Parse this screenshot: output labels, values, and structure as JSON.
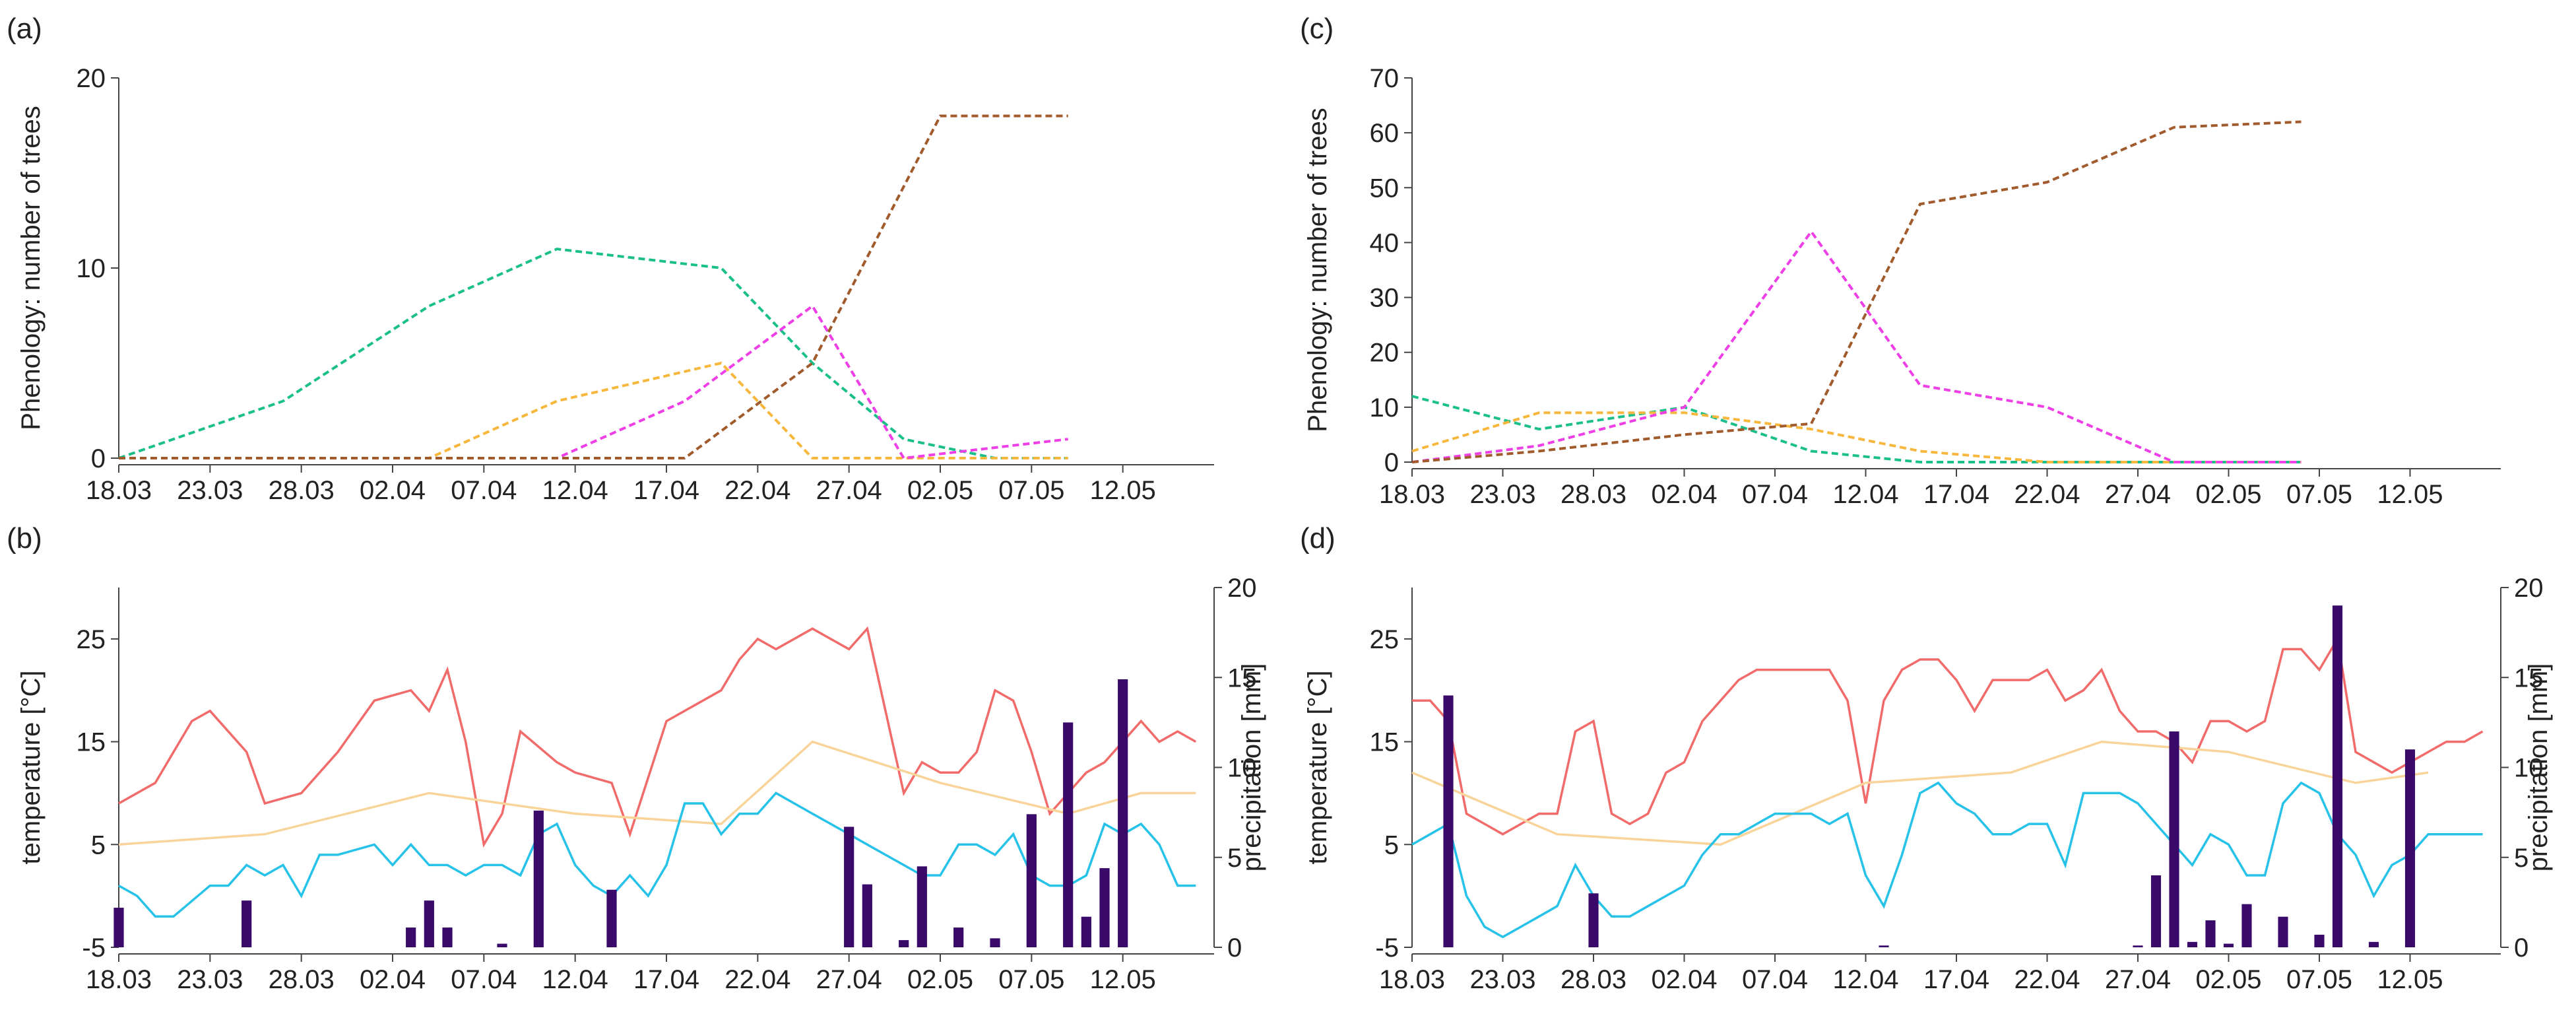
{
  "chart_data": [
    {
      "panel": "(a)",
      "type": "line",
      "ylabel": "Phenology: number of trees",
      "xlabel": "",
      "ylim": [
        0,
        20
      ],
      "yticks": [
        "0",
        "10",
        "20"
      ],
      "xticks": [
        "18.03",
        "23.03",
        "28.03",
        "02.04",
        "07.04",
        "12.04",
        "17.04",
        "22.04",
        "27.04",
        "02.05",
        "07.05",
        "12.05"
      ],
      "xlim": [
        0,
        60
      ],
      "series": [
        {
          "color": "#1bbf8a",
          "x": [
            0,
            9,
            17,
            24,
            33,
            38,
            43,
            48,
            52
          ],
          "y": [
            0,
            3,
            8,
            11,
            10,
            5,
            1,
            0,
            0
          ]
        },
        {
          "color": "#f6b73c",
          "x": [
            0,
            17,
            24,
            33,
            38,
            43,
            52
          ],
          "y": [
            0,
            0,
            3,
            5,
            0,
            0,
            0
          ]
        },
        {
          "color": "#ee3ee6",
          "x": [
            0,
            24,
            31,
            38,
            43,
            52
          ],
          "y": [
            0,
            0,
            3,
            8,
            0,
            1
          ]
        },
        {
          "color": "#a05a2c",
          "x": [
            0,
            31,
            38,
            45,
            52
          ],
          "y": [
            0,
            0,
            5,
            18,
            18
          ]
        }
      ]
    },
    {
      "panel": "(b)",
      "type": "line",
      "ylabel": "temperature [°C]",
      "y2label": "precipitation [mm]",
      "ylim": [
        -5,
        30
      ],
      "yticks": [
        "-5",
        "5",
        "15",
        "25"
      ],
      "y2lim": [
        0,
        20
      ],
      "y2ticks": [
        "0",
        "5",
        "10",
        "15",
        "20"
      ],
      "xticks": [
        "18.03",
        "23.03",
        "28.03",
        "02.04",
        "07.04",
        "12.04",
        "17.04",
        "22.04",
        "27.04",
        "02.05",
        "07.05",
        "12.05"
      ],
      "xlim": [
        0,
        60
      ],
      "series": [
        {
          "color": "#f26b6b",
          "x": [
            0,
            2,
            4,
            5,
            7,
            8,
            10,
            12,
            14,
            16,
            17,
            18,
            19,
            20,
            21,
            22,
            24,
            25,
            27,
            28,
            30,
            33,
            34,
            35,
            36,
            38,
            40,
            41,
            43,
            44,
            45,
            46,
            47,
            48,
            49,
            50,
            51,
            52,
            53,
            54,
            56,
            57,
            58,
            59
          ],
          "y": [
            9,
            11,
            17,
            18,
            14,
            9,
            10,
            14,
            19,
            20,
            18,
            22,
            15,
            5,
            8,
            16,
            13,
            12,
            11,
            6,
            17,
            20,
            23,
            25,
            24,
            26,
            24,
            26,
            10,
            13,
            12,
            12,
            14,
            20,
            19,
            14,
            8,
            10,
            12,
            13,
            17,
            15,
            16,
            15
          ]
        },
        {
          "color": "#f9d49a",
          "x": [
            0,
            8,
            17,
            25,
            33,
            38,
            45,
            52,
            56,
            59
          ],
          "y": [
            5,
            6,
            10,
            8,
            7,
            15,
            11,
            8,
            10,
            10
          ]
        },
        {
          "color": "#27c2e8",
          "x": [
            0,
            1,
            2,
            3,
            5,
            6,
            7,
            8,
            9,
            10,
            11,
            12,
            14,
            15,
            16,
            17,
            18,
            19,
            20,
            21,
            22,
            23,
            24,
            25,
            26,
            27,
            28,
            29,
            30,
            31,
            32,
            33,
            34,
            35,
            36,
            37,
            38,
            39,
            40,
            41,
            42,
            43,
            44,
            45,
            46,
            47,
            48,
            49,
            50,
            51,
            52,
            53,
            54,
            55,
            56,
            57,
            58,
            59
          ],
          "y": [
            1,
            0,
            -2,
            -2,
            1,
            1,
            3,
            2,
            3,
            0,
            4,
            4,
            5,
            3,
            5,
            3,
            3,
            2,
            3,
            3,
            2,
            6,
            7,
            3,
            1,
            0,
            2,
            0,
            3,
            9,
            9,
            6,
            8,
            8,
            10,
            9,
            8,
            7,
            6,
            5,
            4,
            3,
            2,
            2,
            5,
            5,
            4,
            6,
            2,
            1,
            1,
            2,
            7,
            6,
            7,
            5,
            1,
            1
          ]
        },
        {
          "color": "#3a0a6b",
          "type": "bar",
          "axis": "y2",
          "x": [
            0,
            7,
            16,
            17,
            18,
            21,
            23,
            27,
            40,
            41,
            43,
            44,
            46,
            48,
            50,
            52,
            53,
            54,
            55
          ],
          "y": [
            2.2,
            2.6,
            1.1,
            2.6,
            1.1,
            0.2,
            7.6,
            3.2,
            6.7,
            3.5,
            0.4,
            4.5,
            1.1,
            0.5,
            7.4,
            12.5,
            1.7,
            4.4,
            14.9
          ]
        }
      ]
    },
    {
      "panel": "(c)",
      "type": "line",
      "ylabel": "Phenology: number of trees",
      "ylim": [
        0,
        70
      ],
      "yticks": [
        "0",
        "10",
        "20",
        "30",
        "40",
        "50",
        "60",
        "70"
      ],
      "xticks": [
        "18.03",
        "23.03",
        "28.03",
        "02.04",
        "07.04",
        "12.04",
        "17.04",
        "22.04",
        "27.04",
        "02.05",
        "07.05",
        "12.05"
      ],
      "xlim": [
        0,
        60
      ],
      "series": [
        {
          "color": "#1bbf8a",
          "x": [
            0,
            7,
            15,
            22,
            28,
            35,
            42,
            49
          ],
          "y": [
            12,
            6,
            10,
            2,
            0,
            0,
            0,
            0
          ]
        },
        {
          "color": "#f6b73c",
          "x": [
            0,
            7,
            15,
            22,
            28,
            35,
            42,
            49
          ],
          "y": [
            2,
            9,
            9,
            6,
            2,
            0,
            0,
            0
          ]
        },
        {
          "color": "#ee3ee6",
          "x": [
            0,
            7,
            15,
            22,
            28,
            35,
            42,
            49
          ],
          "y": [
            0,
            3,
            10,
            42,
            14,
            10,
            0,
            0
          ]
        },
        {
          "color": "#a05a2c",
          "x": [
            0,
            7,
            15,
            22,
            28,
            35,
            42,
            49
          ],
          "y": [
            0,
            2,
            5,
            7,
            47,
            51,
            61,
            62
          ]
        }
      ]
    },
    {
      "panel": "(d)",
      "type": "line",
      "ylabel": "temperature [°C]",
      "y2label": "precipitation [mm]",
      "ylim": [
        -5,
        30
      ],
      "yticks": [
        "-5",
        "5",
        "15",
        "25"
      ],
      "y2lim": [
        0,
        20
      ],
      "y2ticks": [
        "0",
        "5",
        "10",
        "15",
        "20"
      ],
      "xticks": [
        "18.03",
        "23.03",
        "28.03",
        "02.04",
        "07.04",
        "12.04",
        "17.04",
        "22.04",
        "27.04",
        "02.05",
        "07.05",
        "12.05"
      ],
      "xlim": [
        0,
        60
      ],
      "series": [
        {
          "color": "#f26b6b",
          "x": [
            0,
            1,
            2,
            3,
            4,
            5,
            6,
            7,
            8,
            9,
            10,
            11,
            12,
            13,
            14,
            15,
            16,
            17,
            18,
            19,
            20,
            21,
            22,
            23,
            24,
            25,
            26,
            27,
            28,
            29,
            30,
            31,
            32,
            33,
            34,
            35,
            36,
            37,
            38,
            39,
            40,
            41,
            42,
            43,
            44,
            45,
            46,
            47,
            48,
            49,
            50,
            51,
            52,
            53,
            54,
            55,
            56,
            57,
            58,
            59
          ],
          "y": [
            19,
            19,
            17,
            8,
            7,
            6,
            7,
            8,
            8,
            16,
            17,
            8,
            7,
            8,
            12,
            13,
            17,
            19,
            21,
            22,
            22,
            22,
            22,
            22,
            19,
            9,
            19,
            22,
            23,
            23,
            21,
            18,
            21,
            21,
            21,
            22,
            19,
            20,
            22,
            18,
            16,
            16,
            15,
            13,
            17,
            17,
            16,
            17,
            24,
            24,
            22,
            25,
            14,
            13,
            12,
            13,
            14,
            15,
            15,
            16
          ]
        },
        {
          "color": "#f9d49a",
          "x": [
            0,
            8,
            17,
            25,
            33,
            38,
            45,
            52,
            56
          ],
          "y": [
            12,
            6,
            5,
            11,
            12,
            15,
            14,
            11,
            12
          ]
        },
        {
          "color": "#27c2e8",
          "x": [
            0,
            1,
            2,
            3,
            4,
            5,
            6,
            7,
            8,
            9,
            10,
            11,
            12,
            13,
            14,
            15,
            16,
            17,
            18,
            19,
            20,
            21,
            22,
            23,
            24,
            25,
            26,
            27,
            28,
            29,
            30,
            31,
            32,
            33,
            34,
            35,
            36,
            37,
            38,
            39,
            40,
            41,
            42,
            43,
            44,
            45,
            46,
            47,
            48,
            49,
            50,
            51,
            52,
            53,
            54,
            55,
            56,
            57,
            58,
            59
          ],
          "y": [
            5,
            6,
            7,
            0,
            -3,
            -4,
            -3,
            -2,
            -1,
            3,
            0,
            -2,
            -2,
            -1,
            0,
            1,
            4,
            6,
            6,
            7,
            8,
            8,
            8,
            7,
            8,
            2,
            -1,
            4,
            10,
            11,
            9,
            8,
            6,
            6,
            7,
            7,
            3,
            10,
            10,
            10,
            9,
            7,
            5,
            3,
            6,
            5,
            2,
            2,
            9,
            11,
            10,
            6,
            4,
            0,
            3,
            4,
            6,
            6,
            6,
            6
          ]
        },
        {
          "color": "#3a0a6b",
          "type": "bar",
          "axis": "y2",
          "x": [
            2,
            10,
            26,
            40,
            41,
            42,
            43,
            44,
            45,
            46,
            48,
            50,
            51,
            53,
            55
          ],
          "y": [
            14,
            3,
            0.1,
            0.1,
            4,
            12,
            0.3,
            1.5,
            0.2,
            2.4,
            1.7,
            0.7,
            19,
            0.3,
            11
          ]
        }
      ]
    }
  ]
}
